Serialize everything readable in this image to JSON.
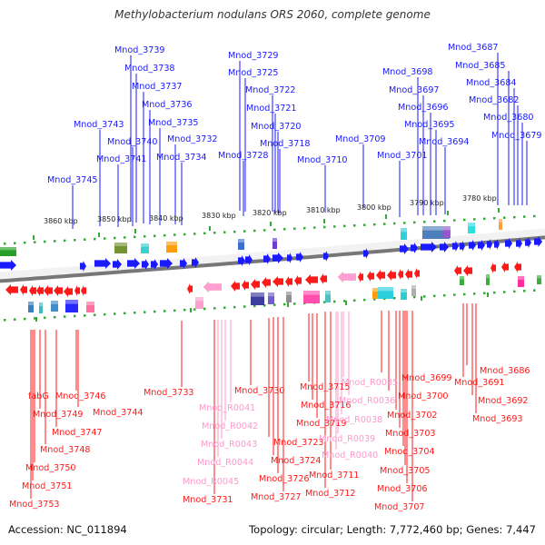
{
  "title": "Methylobacterium nodulans ORS 2060, complete genome",
  "footer": {
    "accession": "Accession: NC_011894",
    "summary": "Topology: circular; Length: 7,772,460 bp; Genes: 7,447"
  },
  "colors": {
    "forward": "#1a1aff",
    "reverse": "#ff1a1a",
    "rna_label": "#ff99cc",
    "rna_arrow": "#ff9ed2",
    "backbone": "#777777",
    "tick": "#33aa33"
  },
  "scale_labels": [
    "3860 kbp",
    "3850 kbp",
    "3840 kbp",
    "3830 kbp",
    "3820 kbp",
    "3810 kbp",
    "3800 kbp",
    "3790 kbp",
    "3780 kbp"
  ],
  "top_labels": [
    "Mnod_3739",
    "Mnod_3738",
    "Mnod_3737",
    "Mnod_3736",
    "Mnod_3735",
    "Mnod_3743",
    "Mnod_3740",
    "Mnod_3741",
    "Mnod_3732",
    "Mnod_3734",
    "Mnod_3745",
    "Mnod_3729",
    "Mnod_3725",
    "Mnod_3722",
    "Mnod_3721",
    "Mnod_3720",
    "Mnod_3718",
    "Mnod_3728",
    "Mnod_3710",
    "Mnod_3709",
    "Mnod_3698",
    "Mnod_3697",
    "Mnod_3696",
    "Mnod_3695",
    "Mnod_3694",
    "Mnod_3701",
    "Mnod_3687",
    "Mnod_3685",
    "Mnod_3684",
    "Mnod_3682",
    "Mnod_3680",
    "Mnod_3679"
  ],
  "bottom_labels": [
    "fabG",
    "Mnod_3746",
    "Mnod_3744",
    "Mnod_3749",
    "Mnod_3747",
    "Mnod_3748",
    "Mnod_3750",
    "Mnod_3751",
    "Mnod_3753",
    "Mnod_3733",
    "Mnod_3730",
    "Mnod_R0041",
    "Mnod_R0042",
    "Mnod_R0043",
    "Mnod_R0044",
    "Mnod_R0045",
    "Mnod_3731",
    "Mnod_3723",
    "Mnod_3724",
    "Mnod_3726",
    "Mnod_3727",
    "Mnod_3715",
    "Mnod_3716",
    "Mnod_3719",
    "Mnod_R0035",
    "Mnod_R0036",
    "Mnod_R0038",
    "Mnod_R0039",
    "Mnod_R0040",
    "Mnod_3711",
    "Mnod_3712",
    "Mnod_3699",
    "Mnod_3700",
    "Mnod_3702",
    "Mnod_3703",
    "Mnod_3704",
    "Mnod_3705",
    "Mnod_3706",
    "Mnod_3707",
    "Mnod_3686",
    "Mnod_3691",
    "Mnod_3692",
    "Mnod_3693"
  ]
}
